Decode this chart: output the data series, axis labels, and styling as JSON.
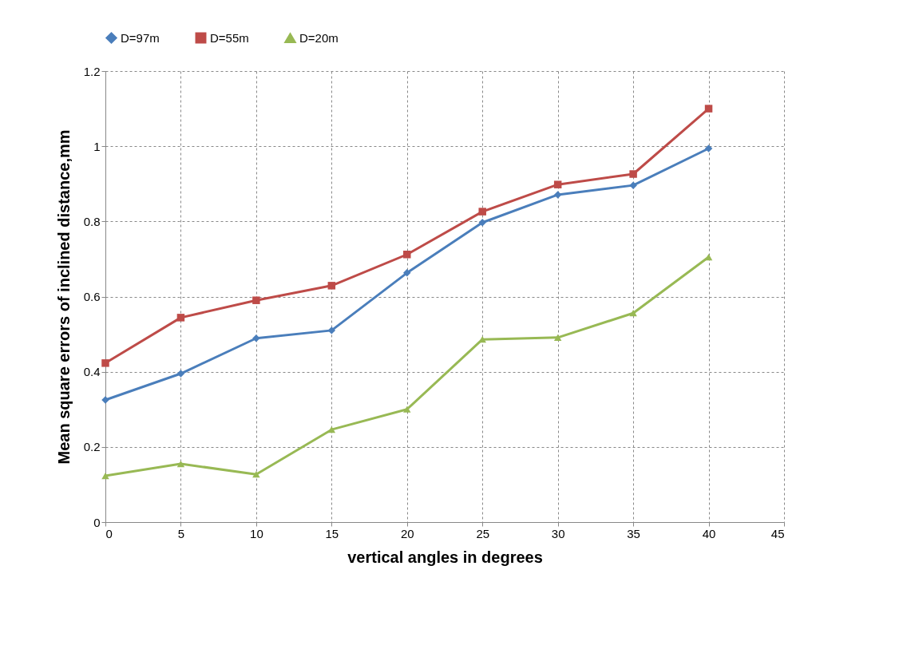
{
  "chart_data": {
    "type": "line",
    "xlabel": "vertical angles in degrees",
    "ylabel": "Mean square errors of inclined distance,mm",
    "x": [
      0,
      5,
      10,
      15,
      20,
      25,
      30,
      35,
      40
    ],
    "series": [
      {
        "name": "D=97m",
        "color": "#4a7ebb",
        "marker": "diamond",
        "values": [
          0.325,
          0.395,
          0.489,
          0.51,
          0.663,
          0.797,
          0.871,
          0.896,
          0.994
        ]
      },
      {
        "name": "D=55m",
        "color": "#be4b48",
        "marker": "square",
        "values": [
          0.423,
          0.544,
          0.59,
          0.629,
          0.712,
          0.826,
          0.898,
          0.926,
          1.1
        ]
      },
      {
        "name": "D=20m",
        "color": "#98b954",
        "marker": "triangle",
        "values": [
          0.123,
          0.155,
          0.127,
          0.246,
          0.3,
          0.486,
          0.491,
          0.556,
          0.705
        ]
      }
    ],
    "xlim": [
      0,
      45
    ],
    "xticks": [
      0,
      5,
      10,
      15,
      20,
      25,
      30,
      35,
      40,
      45
    ],
    "ylim": [
      0,
      1.2
    ],
    "yticks": [
      0,
      0.2,
      0.4,
      0.6,
      0.8,
      1,
      1.2
    ],
    "grid": true,
    "legend": "top",
    "line_style": "solid"
  }
}
